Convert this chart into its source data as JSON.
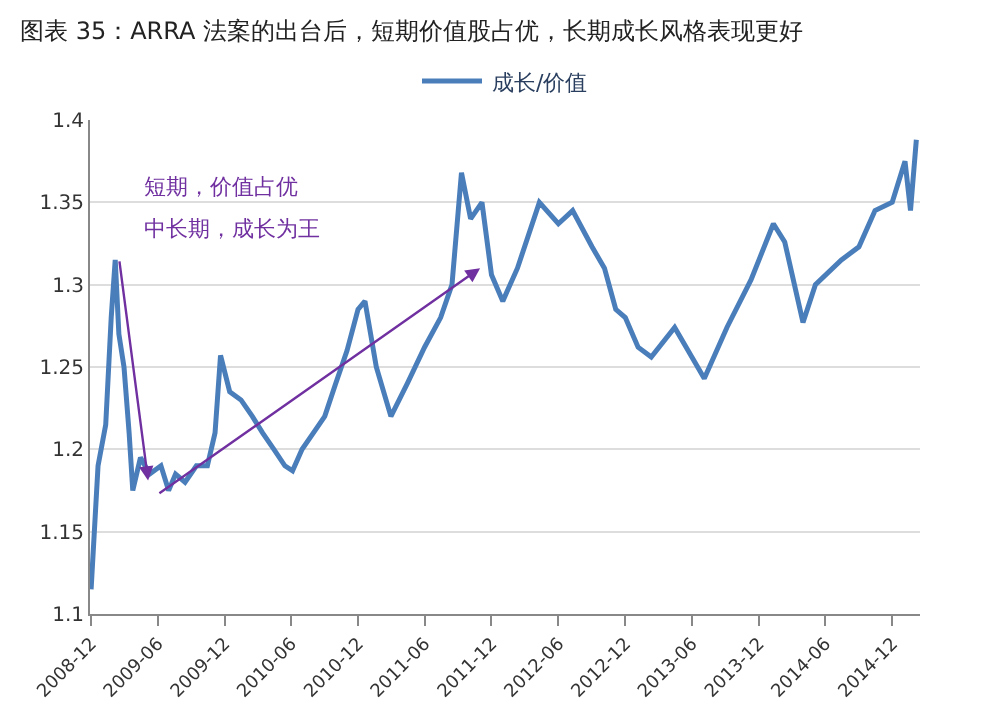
{
  "chart_data": {
    "type": "line",
    "title": "图表 35：ARRA 法案的出台后，短期价值股占优，长期成长风格表现更好",
    "annotations": [
      "短期，价值占优",
      "中长期，成长为王"
    ],
    "series": [
      {
        "name": "成长/价值",
        "color": "#4a7ebb",
        "x": [
          "2008-12-01",
          "2008-12-20",
          "2009-01-10",
          "2009-01-25",
          "2009-02-05",
          "2009-02-15",
          "2009-03-01",
          "2009-03-15",
          "2009-03-25",
          "2009-04-15",
          "2009-05-10",
          "2009-06-10",
          "2009-07-01",
          "2009-07-20",
          "2009-08-15",
          "2009-09-15",
          "2009-10-15",
          "2009-11-05",
          "2009-11-20",
          "2009-12-15",
          "2010-01-15",
          "2010-02-15",
          "2010-03-15",
          "2010-04-15",
          "2010-05-15",
          "2010-06-05",
          "2010-07-01",
          "2010-08-01",
          "2010-09-01",
          "2010-10-01",
          "2010-11-01",
          "2010-12-01",
          "2010-12-20",
          "2011-01-20",
          "2011-03-01",
          "2011-04-15",
          "2011-06-01",
          "2011-07-15",
          "2011-08-15",
          "2011-09-10",
          "2011-10-05",
          "2011-11-05",
          "2011-12-01",
          "2012-01-01",
          "2012-02-10",
          "2012-04-10",
          "2012-06-01",
          "2012-07-10",
          "2012-09-01",
          "2012-10-05",
          "2012-11-05",
          "2012-12-01",
          "2013-01-05",
          "2013-02-10",
          "2013-04-15",
          "2013-06-01",
          "2013-07-05",
          "2013-09-05",
          "2013-11-10",
          "2014-01-10",
          "2014-02-10",
          "2014-04-01",
          "2014-05-05",
          "2014-07-15",
          "2014-09-01",
          "2014-10-15",
          "2014-12-01",
          "2015-01-05",
          "2015-01-20",
          "2015-02-05"
        ],
        "values": [
          1.115,
          1.19,
          1.215,
          1.28,
          1.315,
          1.27,
          1.25,
          1.21,
          1.175,
          1.195,
          1.185,
          1.19,
          1.175,
          1.185,
          1.18,
          1.19,
          1.19,
          1.21,
          1.257,
          1.235,
          1.23,
          1.22,
          1.21,
          1.2,
          1.19,
          1.187,
          1.2,
          1.21,
          1.22,
          1.24,
          1.26,
          1.285,
          1.29,
          1.25,
          1.22,
          1.24,
          1.262,
          1.28,
          1.3,
          1.368,
          1.34,
          1.35,
          1.306,
          1.29,
          1.31,
          1.35,
          1.337,
          1.345,
          1.323,
          1.31,
          1.285,
          1.28,
          1.262,
          1.256,
          1.274,
          1.256,
          1.243,
          1.274,
          1.303,
          1.337,
          1.326,
          1.277,
          1.3,
          1.315,
          1.323,
          1.345,
          1.35,
          1.375,
          1.345,
          1.388
        ]
      }
    ],
    "xlim": [
      "2008-11-28",
      "2015-02-15"
    ],
    "xticks": [
      "2008-12",
      "2009-06",
      "2009-12",
      "2010-06",
      "2010-12",
      "2011-06",
      "2011-12",
      "2012-06",
      "2012-12",
      "2013-06",
      "2013-12",
      "2014-06",
      "2014-12"
    ],
    "ylim": [
      1.1,
      1.4
    ],
    "yticks": [
      1.1,
      1.15,
      1.2,
      1.25,
      1.3,
      1.35,
      1.4
    ],
    "grid": "y",
    "legend": "top"
  }
}
